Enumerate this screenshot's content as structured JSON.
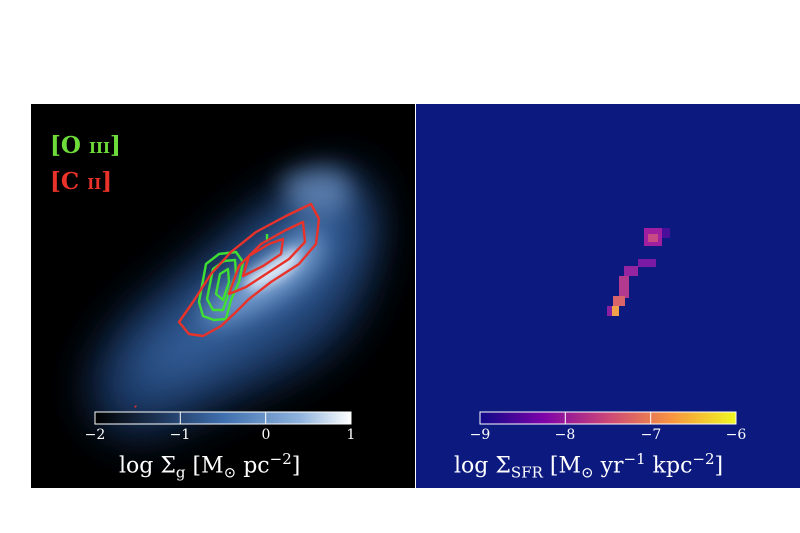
{
  "panels": {
    "gas": {
      "legend": [
        {
          "element": "O",
          "ion": "III",
          "color": "#6ddc3a"
        },
        {
          "element": "C",
          "ion": "II",
          "color": "#e8322a"
        }
      ],
      "colorbar": {
        "ticks": [
          "−2",
          "−1",
          "0",
          "1"
        ],
        "tick_values": [
          -2,
          -1,
          0,
          1
        ],
        "label_prefix": "log Σ",
        "label_sub": "g",
        "label_units": " [M",
        "label_units2": " pc",
        "label_exp": "−2",
        "label_close": "]",
        "colors": [
          "#000000",
          "#1e3558",
          "#3f6fae",
          "#8fb3dd",
          "#ffffff"
        ]
      }
    },
    "sfr": {
      "background": "#0c1a80",
      "colorbar": {
        "ticks": [
          "−9",
          "−8",
          "−7",
          "−6"
        ],
        "tick_values": [
          -9,
          -8,
          -7,
          -6
        ],
        "label_prefix": "log Σ",
        "label_sub": "SFR",
        "label_units": " [M",
        "label_units2": " yr",
        "label_exp1": "−1",
        "label_units3": " kpc",
        "label_exp2": "−2",
        "label_close": "]",
        "colors": [
          "#0d0887",
          "#7e03a8",
          "#cc4778",
          "#f89540",
          "#f0f921"
        ]
      }
    }
  },
  "chart_data": [
    {
      "type": "heatmap",
      "title": "",
      "quantity": "log Σ_g [M⊙ pc^-2]",
      "colorbar_range": [
        -2,
        1
      ],
      "colorbar_ticks": [
        -2,
        -1,
        0,
        1
      ],
      "overlays": [
        {
          "name": "[O III]",
          "type": "contour",
          "color": "#6ddc3a"
        },
        {
          "name": "[C II]",
          "type": "contour",
          "color": "#e8322a"
        }
      ]
    },
    {
      "type": "heatmap",
      "title": "",
      "quantity": "log Σ_SFR [M⊙ yr^-1 kpc^-2]",
      "colorbar_range": [
        -9,
        -6
      ],
      "colorbar_ticks": [
        -9,
        -8,
        -7,
        -6
      ],
      "pixels": [
        {
          "value": -7.6
        },
        {
          "value": -7.8
        },
        {
          "value": -8.4
        },
        {
          "value": -7.3
        },
        {
          "value": -7.5
        },
        {
          "value": -7.4
        },
        {
          "value": -6.8
        },
        {
          "value": -8.1
        }
      ]
    }
  ]
}
